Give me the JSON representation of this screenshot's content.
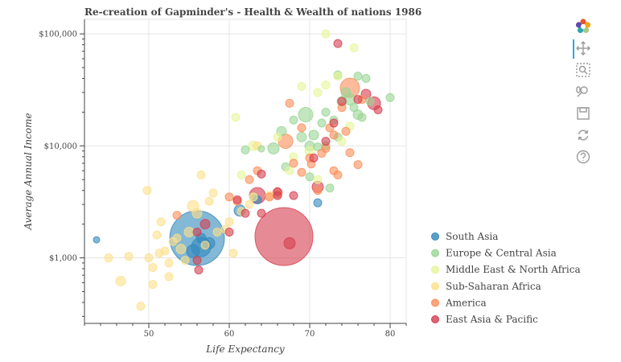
{
  "chart_data": {
    "type": "scatter",
    "title": "Re-creation of Gapminder's - Health & Wealth of nations 1986",
    "xlabel": "Life Expectancy",
    "ylabel": "Average Annual Income",
    "x_ticks": [
      50,
      60,
      70,
      80
    ],
    "y_ticks": [
      1000,
      10000,
      100000
    ],
    "y_tick_labels": [
      "$1,000",
      "$10,000",
      "$100,000"
    ],
    "x_range": [
      42,
      82
    ],
    "y_range": [
      260,
      135000
    ],
    "y_scale": "log",
    "grid": true,
    "legend_position": "right",
    "series": [
      {
        "name": "South Asia",
        "color": "#3288bd",
        "points": [
          [
            43.5,
            1450,
            4
          ],
          [
            56,
            1500,
            34
          ],
          [
            56.5,
            1250,
            12
          ],
          [
            55.5,
            1150,
            8
          ],
          [
            56.5,
            1500,
            6
          ],
          [
            57.5,
            1350,
            7
          ],
          [
            61.3,
            2650,
            7
          ],
          [
            63.5,
            3300,
            5
          ],
          [
            71,
            3100,
            5
          ]
        ]
      },
      {
        "name": "Europe & Central Asia",
        "color": "#99d594",
        "points": [
          [
            62,
            9200,
            5
          ],
          [
            64,
            9400,
            4
          ],
          [
            65.5,
            9500,
            7
          ],
          [
            66.5,
            13500,
            6
          ],
          [
            67,
            6500,
            5
          ],
          [
            68,
            17000,
            5
          ],
          [
            69,
            12000,
            6
          ],
          [
            69.5,
            19000,
            9
          ],
          [
            70,
            10000,
            6
          ],
          [
            70.5,
            12500,
            6
          ],
          [
            71,
            9800,
            5
          ],
          [
            71.5,
            16000,
            5
          ],
          [
            72,
            20000,
            5
          ],
          [
            72,
            10000,
            5
          ],
          [
            73,
            17000,
            5
          ],
          [
            73.5,
            12000,
            5
          ],
          [
            73.5,
            43000,
            5
          ],
          [
            74,
            25000,
            6
          ],
          [
            74.5,
            30000,
            6
          ],
          [
            75,
            26000,
            7
          ],
          [
            75.5,
            22000,
            5
          ],
          [
            76,
            19000,
            6
          ],
          [
            76.5,
            18000,
            5
          ],
          [
            76,
            42000,
            5
          ],
          [
            77,
            40000,
            5
          ],
          [
            77.5,
            25000,
            5
          ],
          [
            80,
            27000,
            5
          ],
          [
            70,
            5300,
            5
          ],
          [
            72.5,
            4200,
            5
          ]
        ]
      },
      {
        "name": "Middle East & North Africa",
        "color": "#e6f598",
        "points": [
          [
            60.8,
            18000,
            5
          ],
          [
            61.5,
            5500,
            5
          ],
          [
            63,
            10000,
            6
          ],
          [
            66,
            12000,
            5
          ],
          [
            67.5,
            6000,
            5
          ],
          [
            68,
            8000,
            5
          ],
          [
            69,
            34000,
            5
          ],
          [
            70,
            9000,
            6
          ],
          [
            71,
            30000,
            5
          ],
          [
            72,
            35000,
            5
          ],
          [
            72,
            100000,
            5
          ],
          [
            73.5,
            42000,
            5
          ],
          [
            75.5,
            75000,
            5
          ],
          [
            75,
            15000,
            5
          ],
          [
            74,
            11000,
            5
          ],
          [
            71,
            5000,
            5
          ],
          [
            63,
            3500,
            5
          ]
        ]
      },
      {
        "name": "Sub-Saharan Africa",
        "color": "#fee08b",
        "points": [
          [
            45,
            1000,
            5
          ],
          [
            46.5,
            620,
            6
          ],
          [
            47.5,
            1030,
            5
          ],
          [
            49,
            370,
            5
          ],
          [
            49.8,
            4000,
            5
          ],
          [
            50,
            1000,
            5
          ],
          [
            50.5,
            820,
            5
          ],
          [
            50.5,
            580,
            5
          ],
          [
            51,
            1600,
            5
          ],
          [
            51.5,
            2100,
            5
          ],
          [
            52,
            1150,
            5
          ],
          [
            52.5,
            900,
            5
          ],
          [
            52.5,
            680,
            5
          ],
          [
            53,
            1400,
            5
          ],
          [
            53.5,
            1500,
            5
          ],
          [
            54,
            1200,
            6
          ],
          [
            54.5,
            950,
            5
          ],
          [
            55,
            1700,
            6
          ],
          [
            55.5,
            2900,
            7
          ],
          [
            56,
            2500,
            6
          ],
          [
            56.5,
            5500,
            5
          ],
          [
            57,
            1300,
            5
          ],
          [
            57.5,
            3200,
            5
          ],
          [
            58,
            3800,
            5
          ],
          [
            58.5,
            1700,
            5
          ],
          [
            59.5,
            1800,
            5
          ],
          [
            60.5,
            1100,
            5
          ],
          [
            61.5,
            2600,
            5
          ],
          [
            62.5,
            3000,
            5
          ],
          [
            63.5,
            10000,
            5
          ],
          [
            65,
            3600,
            5
          ],
          [
            60,
            2100,
            5
          ],
          [
            51.3,
            1100,
            5
          ]
        ]
      },
      {
        "name": "America",
        "color": "#fc8d59",
        "points": [
          [
            53.5,
            2400,
            5
          ],
          [
            60,
            3500,
            5
          ],
          [
            61,
            3200,
            5
          ],
          [
            62.5,
            5000,
            5
          ],
          [
            63.5,
            6000,
            5
          ],
          [
            65,
            3500,
            5
          ],
          [
            66,
            3800,
            6
          ],
          [
            67,
            11000,
            9
          ],
          [
            67.5,
            24000,
            5
          ],
          [
            68,
            7000,
            5
          ],
          [
            69,
            14500,
            5
          ],
          [
            69,
            5800,
            5
          ],
          [
            70,
            7800,
            5
          ],
          [
            70.2,
            6900,
            5
          ],
          [
            71,
            4000,
            5
          ],
          [
            71.5,
            8600,
            5
          ],
          [
            72,
            9500,
            5
          ],
          [
            72.5,
            14500,
            5
          ],
          [
            73,
            12500,
            5
          ],
          [
            73,
            6000,
            5
          ],
          [
            73.5,
            5500,
            5
          ],
          [
            74,
            22000,
            5
          ],
          [
            74.5,
            13500,
            5
          ],
          [
            75,
            8700,
            5
          ],
          [
            75,
            33000,
            12
          ],
          [
            76,
            6800,
            5
          ],
          [
            76.5,
            26000,
            5
          ]
        ]
      },
      {
        "name": "East Asia & Pacific",
        "color": "#d53e4f",
        "points": [
          [
            56,
            950,
            5
          ],
          [
            56.2,
            780,
            5
          ],
          [
            57,
            2000,
            6
          ],
          [
            56,
            1700,
            5
          ],
          [
            60,
            1700,
            5
          ],
          [
            61,
            3300,
            5
          ],
          [
            62,
            2500,
            5
          ],
          [
            63.5,
            3600,
            10
          ],
          [
            64,
            5600,
            5
          ],
          [
            64,
            2500,
            5
          ],
          [
            66,
            3600,
            5
          ],
          [
            66.8,
            1550,
            36
          ],
          [
            67.5,
            1350,
            7
          ],
          [
            68,
            3600,
            5
          ],
          [
            70.5,
            7800,
            5
          ],
          [
            71,
            4300,
            7
          ],
          [
            73,
            16000,
            5
          ],
          [
            73.5,
            82000,
            5
          ],
          [
            74,
            25000,
            5
          ],
          [
            76,
            26000,
            5
          ],
          [
            77,
            29000,
            6
          ],
          [
            78,
            24000,
            8
          ],
          [
            78.5,
            21000,
            5
          ],
          [
            72,
            11000,
            5
          ],
          [
            66,
            3900,
            5
          ]
        ]
      }
    ]
  },
  "toolbar": {
    "tools": [
      "logo",
      "pan",
      "box-zoom",
      "wheel-zoom",
      "save",
      "reset",
      "help"
    ]
  }
}
